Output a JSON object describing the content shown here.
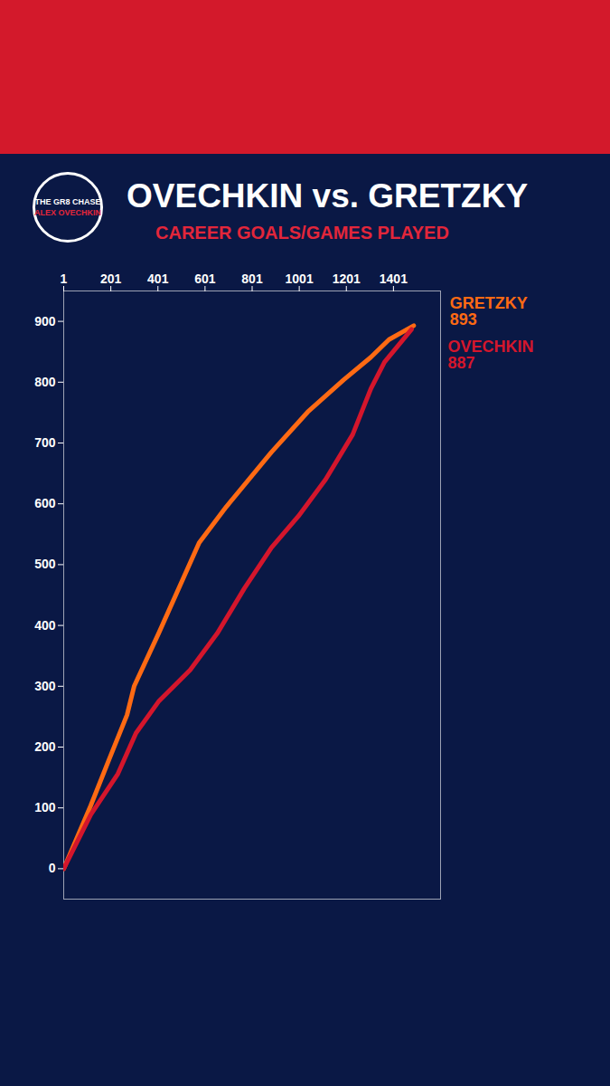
{
  "chart_data": {
    "type": "line",
    "title": "OVECHKIN vs. GRETZKY",
    "subtitle": "CAREER GOALS/GAMES PLAYED",
    "annotations": [
      "THE GR8 CHASE",
      "ALEX OVECHKIN"
    ],
    "series": [
      {
        "name": "GRETZKY",
        "color": "#ff6a13",
        "x": [
          1,
          116,
          193,
          270,
          300,
          404,
          576,
          691,
          883,
          1037,
          1190,
          1305,
          1382,
          1487
        ],
        "values": [
          0,
          104,
          179,
          253,
          300,
          387,
          536,
          595,
          685,
          751,
          804,
          841,
          870,
          893
        ]
      },
      {
        "name": "OVECHKIN",
        "color": "#d4162c",
        "x": [
          1,
          116,
          231,
          308,
          404,
          538,
          653,
          768,
          883,
          998,
          1113,
          1228,
          1305,
          1363,
          1478
        ],
        "values": [
          0,
          89,
          156,
          223,
          275,
          327,
          387,
          461,
          528,
          580,
          640,
          714,
          789,
          833,
          887
        ]
      }
    ],
    "xlim": [
      1,
      1601
    ],
    "xticks": [
      1,
      201,
      401,
      601,
      801,
      1001,
      1201,
      1401
    ],
    "ylim": [
      -50,
      950
    ],
    "yticks": [
      0,
      100,
      200,
      300,
      400,
      500,
      600,
      700,
      800,
      900
    ],
    "grid": false
  }
}
